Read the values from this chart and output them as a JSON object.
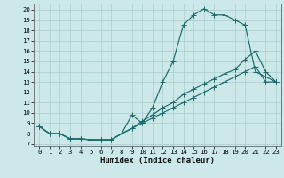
{
  "xlabel": "Humidex (Indice chaleur)",
  "background_color": "#cce8e8",
  "grid_color": "#aacccc",
  "line_color": "#1a6b6b",
  "xlim": [
    -0.5,
    23.5
  ],
  "ylim": [
    6.8,
    20.6
  ],
  "xticks": [
    0,
    1,
    2,
    3,
    4,
    5,
    6,
    7,
    8,
    9,
    10,
    11,
    12,
    13,
    14,
    15,
    16,
    17,
    18,
    19,
    20,
    21,
    22,
    23
  ],
  "yticks": [
    7,
    8,
    9,
    10,
    11,
    12,
    13,
    14,
    15,
    16,
    17,
    18,
    19,
    20
  ],
  "line1_x": [
    0,
    1,
    2,
    3,
    4,
    5,
    6,
    7,
    8,
    9,
    10,
    11,
    12,
    13,
    14,
    15,
    16,
    17,
    18,
    19,
    20,
    21,
    22,
    23
  ],
  "line1_y": [
    8.7,
    8.0,
    8.0,
    7.5,
    7.5,
    7.4,
    7.4,
    7.4,
    8.0,
    9.8,
    9.0,
    10.5,
    13.0,
    15.0,
    18.5,
    19.5,
    20.1,
    19.5,
    19.5,
    19.0,
    18.5,
    14.0,
    13.5,
    13.0
  ],
  "line2_x": [
    0,
    1,
    2,
    3,
    4,
    5,
    6,
    7,
    8,
    9,
    10,
    11,
    12,
    13,
    14,
    15,
    16,
    17,
    18,
    19,
    20,
    21,
    22,
    23
  ],
  "line2_y": [
    8.7,
    8.0,
    8.0,
    7.5,
    7.5,
    7.4,
    7.4,
    7.4,
    8.0,
    8.5,
    9.2,
    9.8,
    10.5,
    11.0,
    11.8,
    12.3,
    12.8,
    13.3,
    13.8,
    14.2,
    15.2,
    16.0,
    14.0,
    13.0
  ],
  "line3_x": [
    0,
    1,
    2,
    3,
    4,
    5,
    6,
    7,
    8,
    9,
    10,
    11,
    12,
    13,
    14,
    15,
    16,
    17,
    18,
    19,
    20,
    21,
    22,
    23
  ],
  "line3_y": [
    8.7,
    8.0,
    8.0,
    7.5,
    7.5,
    7.4,
    7.4,
    7.4,
    8.0,
    8.5,
    9.0,
    9.5,
    10.0,
    10.5,
    11.0,
    11.5,
    12.0,
    12.5,
    13.0,
    13.5,
    14.0,
    14.5,
    13.0,
    13.0
  ],
  "markersize": 2.2,
  "linewidth": 0.85,
  "tick_fontsize": 5.2,
  "label_fontsize": 6.5
}
